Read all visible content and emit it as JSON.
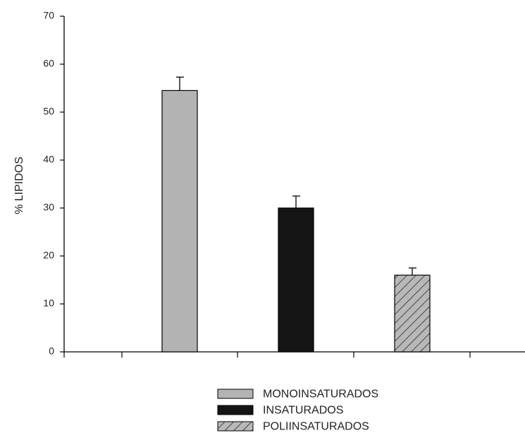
{
  "chart_data": {
    "type": "bar",
    "title": "",
    "xlabel": "",
    "ylabel": "% LIPIDOS",
    "ylim": [
      0,
      70
    ],
    "yticks": [
      0,
      10,
      20,
      30,
      40,
      50,
      60,
      70
    ],
    "categories": [
      "MONOINSATURADOS",
      "INSATURADOS",
      "POLIINSATURADOS"
    ],
    "values": [
      54.5,
      30,
      16
    ],
    "error_upper": [
      2.8,
      2.5,
      1.5
    ],
    "colors": [
      "#b3b3b3",
      "#141414",
      "#b3b3b3"
    ],
    "hatched": [
      false,
      false,
      true
    ],
    "legend_position": "bottom",
    "grid": false
  }
}
